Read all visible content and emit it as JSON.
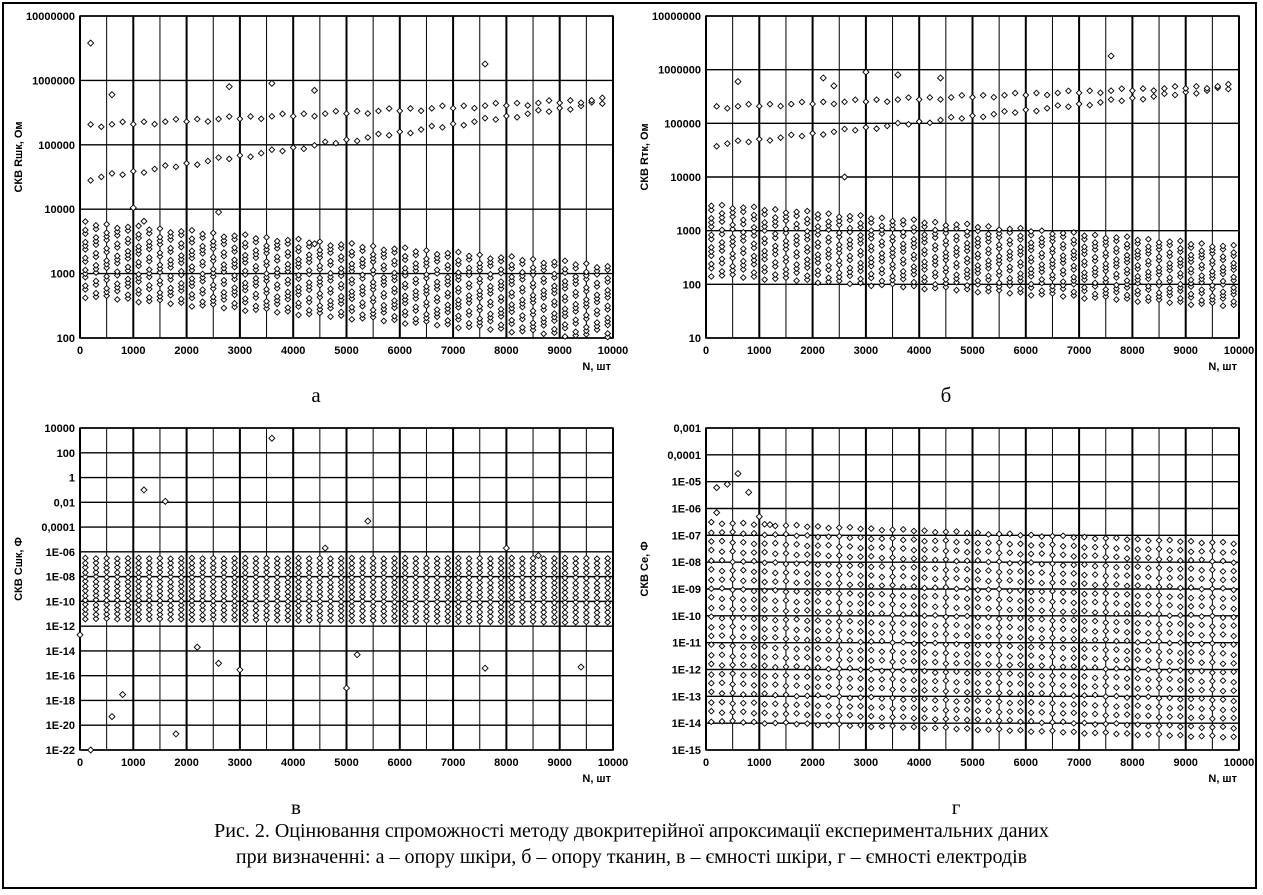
{
  "caption": {
    "line1": "Рис. 2. Оцінювання спроможності методу двокритерійної апроксимації експериментальних даних",
    "line2": "при визначенні: а – опору шкіри, б – опору тканин, в – ємності шкіри, г – ємності електродів"
  },
  "colors": {
    "marker": "#000000",
    "grid": "#000000",
    "background": "#ffffff"
  },
  "chart_data": [
    {
      "panel_label": "а",
      "type": "scatter",
      "ylabel": "СКВ Rшк, Ом",
      "xlabel": "N, шт",
      "log_y": true,
      "xlim": [
        0,
        10000
      ],
      "ylim": [
        100,
        10000000
      ],
      "x_ticks": [
        "0",
        "1000",
        "2000",
        "3000",
        "4000",
        "5000",
        "6000",
        "7000",
        "8000",
        "9000",
        "10000"
      ],
      "y_ticks": [
        "100",
        "1000",
        "10000",
        "100000",
        "1000000",
        "10000000"
      ],
      "bands": [
        {
          "x_start": 100,
          "x_end": 9800,
          "x_step": 200,
          "y_low_start": 450,
          "y_low_end": 100,
          "y_high_start": 6000,
          "y_high_end": 1300,
          "count": 14
        },
        {
          "x_start": 200,
          "x_end": 9800,
          "x_step": 200,
          "y_low_start": 30000,
          "y_low_end": 450000,
          "y_high_start": 200000,
          "y_high_end": 500000,
          "count": 2
        }
      ],
      "outliers": [
        [
          200,
          3800000
        ],
        [
          7600,
          1800000
        ],
        [
          2600,
          9000
        ],
        [
          1000,
          10500
        ],
        [
          1200,
          6500
        ],
        [
          3600,
          900000
        ],
        [
          4400,
          700000
        ],
        [
          2800,
          800000
        ],
        [
          600,
          600000
        ],
        [
          4400,
          2900
        ]
      ]
    },
    {
      "panel_label": "б",
      "type": "scatter",
      "ylabel": "СКВ Rтк, Ом",
      "xlabel": "N, шт",
      "log_y": true,
      "xlim": [
        0,
        10000
      ],
      "ylim": [
        10,
        10000000
      ],
      "x_ticks": [
        "0",
        "1000",
        "2000",
        "3000",
        "4000",
        "5000",
        "6000",
        "7000",
        "8000",
        "9000",
        "10000"
      ],
      "y_ticks": [
        "10",
        "100",
        "1000",
        "10000",
        "100000",
        "1000000",
        "10000000"
      ],
      "bands": [
        {
          "x_start": 100,
          "x_end": 9800,
          "x_step": 200,
          "y_low_start": 150,
          "y_low_end": 40,
          "y_high_start": 3000,
          "y_high_end": 500,
          "count": 13
        },
        {
          "x_start": 200,
          "x_end": 9800,
          "x_step": 200,
          "y_low_start": 40000,
          "y_low_end": 450000,
          "y_high_start": 200000,
          "y_high_end": 500000,
          "count": 2
        }
      ],
      "outliers": [
        [
          7600,
          1800000
        ],
        [
          2600,
          10000
        ],
        [
          3000,
          900000
        ],
        [
          3600,
          800000
        ],
        [
          4400,
          700000
        ],
        [
          600,
          600000
        ],
        [
          2400,
          500000
        ],
        [
          2200,
          700000
        ]
      ]
    },
    {
      "panel_label": "в",
      "type": "scatter",
      "ylabel": "СКВ Сшк, Ф",
      "xlabel": "N, шт",
      "log_y": true,
      "xlim": [
        0,
        10000
      ],
      "ylim": [
        1e-22,
        10000
      ],
      "x_ticks": [
        "0",
        "1000",
        "2000",
        "3000",
        "4000",
        "5000",
        "6000",
        "7000",
        "8000",
        "9000",
        "10000"
      ],
      "y_ticks": [
        "1E-22",
        "1E-20",
        "1E-18",
        "1E-16",
        "1E-14",
        "1E-12",
        "1E-10",
        "1E-08",
        "1E-06",
        "0,0001",
        "0,01",
        "1",
        "100",
        "10000"
      ],
      "bands": [
        {
          "x_start": 100,
          "x_end": 9800,
          "x_step": 200,
          "y_low_start": 4e-12,
          "y_low_end": 2e-12,
          "y_high_start": 3e-07,
          "y_high_end": 3e-07,
          "count": 14
        }
      ],
      "outliers": [
        [
          3600,
          1500
        ],
        [
          1200,
          0.1
        ],
        [
          1600,
          0.012
        ],
        [
          5400,
          0.0003
        ],
        [
          4600,
          2e-06
        ],
        [
          8000,
          2e-06
        ],
        [
          8600,
          5e-07
        ],
        [
          2200,
          2e-14
        ],
        [
          2600,
          1e-15
        ],
        [
          3000,
          3e-16
        ],
        [
          5200,
          5e-15
        ],
        [
          7600,
          4e-16
        ],
        [
          9400,
          5e-16
        ],
        [
          800,
          3e-18
        ],
        [
          600,
          5e-20
        ],
        [
          1800,
          2e-21
        ],
        [
          200,
          1e-22
        ],
        [
          5000,
          1e-17
        ],
        [
          0,
          2e-13
        ]
      ]
    },
    {
      "panel_label": "г",
      "type": "scatter",
      "ylabel": "СКВ Се, Ф",
      "xlabel": "N, шт",
      "log_y": true,
      "xlim": [
        0,
        10000
      ],
      "ylim": [
        1e-15,
        0.001
      ],
      "x_ticks": [
        "0",
        "1000",
        "2000",
        "3000",
        "4000",
        "5000",
        "6000",
        "7000",
        "8000",
        "9000",
        "10000"
      ],
      "y_ticks": [
        "1E-15",
        "1E-14",
        "1E-13",
        "1E-12",
        "1E-11",
        "1E-10",
        "1E-09",
        "1E-08",
        "1E-07",
        "1E-06",
        "1E-05",
        "0,0001",
        "0,001"
      ],
      "bands": [
        {
          "x_start": 100,
          "x_end": 9800,
          "x_step": 200,
          "y_low_start": 1.2e-14,
          "y_low_end": 3e-15,
          "y_high_start": 3e-07,
          "y_high_end": 5e-08,
          "count": 22
        }
      ],
      "outliers": [
        [
          600,
          2e-05
        ],
        [
          200,
          6e-06
        ],
        [
          400,
          8e-06
        ],
        [
          800,
          4e-06
        ],
        [
          200,
          7e-07
        ],
        [
          1000,
          5e-07
        ],
        [
          1200,
          2.5e-07
        ]
      ]
    }
  ]
}
